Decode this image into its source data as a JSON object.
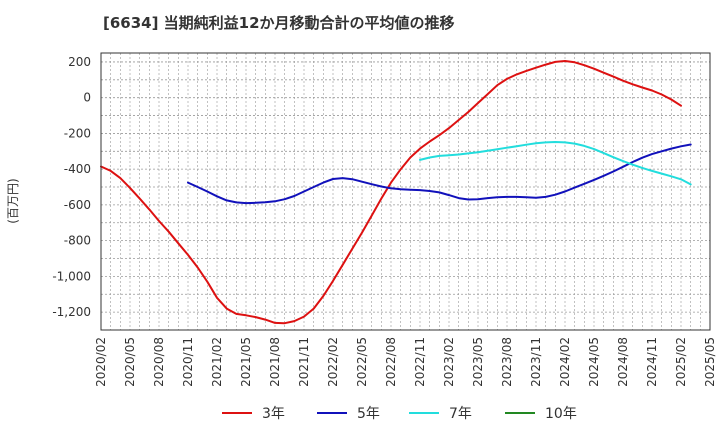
{
  "title": "[6634]  当期純利益12か月移動合計の平均値の推移",
  "chart_data": {
    "type": "line",
    "ylabel": "(百万円)",
    "ylim": [
      -1300,
      250
    ],
    "yticks": [
      200,
      0,
      -200,
      -400,
      -600,
      -800,
      -1000,
      -1200
    ],
    "ytick_labels": [
      "200",
      "0",
      "-200",
      "-400",
      "-600",
      "-800",
      "-1,000",
      "-1,200"
    ],
    "xlim": [
      "2020-02",
      "2025-05"
    ],
    "xticks": [
      "2020/02",
      "2020/05",
      "2020/08",
      "2020/11",
      "2021/02",
      "2021/05",
      "2021/08",
      "2021/11",
      "2022/02",
      "2022/05",
      "2022/08",
      "2022/11",
      "2023/02",
      "2023/05",
      "2023/08",
      "2023/11",
      "2024/02",
      "2024/05",
      "2024/08",
      "2024/11",
      "2025/02",
      "2025/05"
    ],
    "grid": true,
    "legend_position": "bottom",
    "series": [
      {
        "name": "3年",
        "color": "#dd1111",
        "points": [
          [
            "2020-02",
            -385
          ],
          [
            "2020-03",
            -410
          ],
          [
            "2020-04",
            -450
          ],
          [
            "2020-05",
            -505
          ],
          [
            "2020-06",
            -565
          ],
          [
            "2020-07",
            -625
          ],
          [
            "2020-08",
            -690
          ],
          [
            "2020-09",
            -750
          ],
          [
            "2020-10",
            -815
          ],
          [
            "2020-11",
            -880
          ],
          [
            "2020-12",
            -950
          ],
          [
            "2021-01",
            -1030
          ],
          [
            "2021-02",
            -1120
          ],
          [
            "2021-03",
            -1180
          ],
          [
            "2021-04",
            -1210
          ],
          [
            "2021-05",
            -1218
          ],
          [
            "2021-06",
            -1228
          ],
          [
            "2021-07",
            -1242
          ],
          [
            "2021-08",
            -1260
          ],
          [
            "2021-09",
            -1262
          ],
          [
            "2021-10",
            -1250
          ],
          [
            "2021-11",
            -1225
          ],
          [
            "2021-12",
            -1180
          ],
          [
            "2022-01",
            -1110
          ],
          [
            "2022-02",
            -1025
          ],
          [
            "2022-03",
            -935
          ],
          [
            "2022-04",
            -845
          ],
          [
            "2022-05",
            -755
          ],
          [
            "2022-06",
            -660
          ],
          [
            "2022-07",
            -565
          ],
          [
            "2022-08",
            -475
          ],
          [
            "2022-09",
            -400
          ],
          [
            "2022-10",
            -335
          ],
          [
            "2022-11",
            -285
          ],
          [
            "2022-12",
            -245
          ],
          [
            "2023-01",
            -210
          ],
          [
            "2023-02",
            -170
          ],
          [
            "2023-03",
            -125
          ],
          [
            "2023-04",
            -80
          ],
          [
            "2023-05",
            -30
          ],
          [
            "2023-06",
            20
          ],
          [
            "2023-07",
            70
          ],
          [
            "2023-08",
            105
          ],
          [
            "2023-09",
            130
          ],
          [
            "2023-10",
            150
          ],
          [
            "2023-11",
            168
          ],
          [
            "2023-12",
            185
          ],
          [
            "2024-01",
            200
          ],
          [
            "2024-02",
            205
          ],
          [
            "2024-03",
            198
          ],
          [
            "2024-04",
            182
          ],
          [
            "2024-05",
            162
          ],
          [
            "2024-06",
            140
          ],
          [
            "2024-07",
            118
          ],
          [
            "2024-08",
            95
          ],
          [
            "2024-09",
            75
          ],
          [
            "2024-10",
            57
          ],
          [
            "2024-11",
            40
          ],
          [
            "2024-12",
            18
          ],
          [
            "2025-01",
            -10
          ],
          [
            "2025-02",
            -45
          ]
        ]
      },
      {
        "name": "5年",
        "color": "#1111bb",
        "points": [
          [
            "2020-11",
            -475
          ],
          [
            "2020-12",
            -500
          ],
          [
            "2021-01",
            -525
          ],
          [
            "2021-02",
            -552
          ],
          [
            "2021-03",
            -575
          ],
          [
            "2021-04",
            -586
          ],
          [
            "2021-05",
            -590
          ],
          [
            "2021-06",
            -588
          ],
          [
            "2021-07",
            -585
          ],
          [
            "2021-08",
            -580
          ],
          [
            "2021-09",
            -568
          ],
          [
            "2021-10",
            -550
          ],
          [
            "2021-11",
            -525
          ],
          [
            "2021-12",
            -500
          ],
          [
            "2022-01",
            -475
          ],
          [
            "2022-02",
            -455
          ],
          [
            "2022-03",
            -450
          ],
          [
            "2022-04",
            -456
          ],
          [
            "2022-05",
            -470
          ],
          [
            "2022-06",
            -484
          ],
          [
            "2022-07",
            -497
          ],
          [
            "2022-08",
            -507
          ],
          [
            "2022-09",
            -512
          ],
          [
            "2022-10",
            -515
          ],
          [
            "2022-11",
            -517
          ],
          [
            "2022-12",
            -522
          ],
          [
            "2023-01",
            -530
          ],
          [
            "2023-02",
            -545
          ],
          [
            "2023-03",
            -562
          ],
          [
            "2023-04",
            -570
          ],
          [
            "2023-05",
            -568
          ],
          [
            "2023-06",
            -562
          ],
          [
            "2023-07",
            -557
          ],
          [
            "2023-08",
            -555
          ],
          [
            "2023-09",
            -555
          ],
          [
            "2023-10",
            -557
          ],
          [
            "2023-11",
            -560
          ],
          [
            "2023-12",
            -555
          ],
          [
            "2024-01",
            -543
          ],
          [
            "2024-02",
            -525
          ],
          [
            "2024-03",
            -503
          ],
          [
            "2024-04",
            -482
          ],
          [
            "2024-05",
            -460
          ],
          [
            "2024-06",
            -437
          ],
          [
            "2024-07",
            -413
          ],
          [
            "2024-08",
            -387
          ],
          [
            "2024-09",
            -360
          ],
          [
            "2024-10",
            -336
          ],
          [
            "2024-11",
            -316
          ],
          [
            "2024-12",
            -300
          ],
          [
            "2025-01",
            -285
          ],
          [
            "2025-02",
            -272
          ],
          [
            "2025-03",
            -262
          ]
        ]
      },
      {
        "name": "7年",
        "color": "#22dddd",
        "points": [
          [
            "2022-11",
            -348
          ],
          [
            "2022-12",
            -335
          ],
          [
            "2023-01",
            -326
          ],
          [
            "2023-02",
            -322
          ],
          [
            "2023-03",
            -318
          ],
          [
            "2023-04",
            -312
          ],
          [
            "2023-05",
            -305
          ],
          [
            "2023-06",
            -297
          ],
          [
            "2023-07",
            -289
          ],
          [
            "2023-08",
            -280
          ],
          [
            "2023-09",
            -272
          ],
          [
            "2023-10",
            -263
          ],
          [
            "2023-11",
            -255
          ],
          [
            "2023-12",
            -250
          ],
          [
            "2024-01",
            -248
          ],
          [
            "2024-02",
            -250
          ],
          [
            "2024-03",
            -257
          ],
          [
            "2024-04",
            -270
          ],
          [
            "2024-05",
            -288
          ],
          [
            "2024-06",
            -310
          ],
          [
            "2024-07",
            -333
          ],
          [
            "2024-08",
            -355
          ],
          [
            "2024-09",
            -375
          ],
          [
            "2024-10",
            -393
          ],
          [
            "2024-11",
            -410
          ],
          [
            "2024-12",
            -425
          ],
          [
            "2025-01",
            -440
          ],
          [
            "2025-02",
            -457
          ],
          [
            "2025-03",
            -485
          ]
        ]
      },
      {
        "name": "10年",
        "color": "#228822",
        "points": []
      }
    ]
  }
}
